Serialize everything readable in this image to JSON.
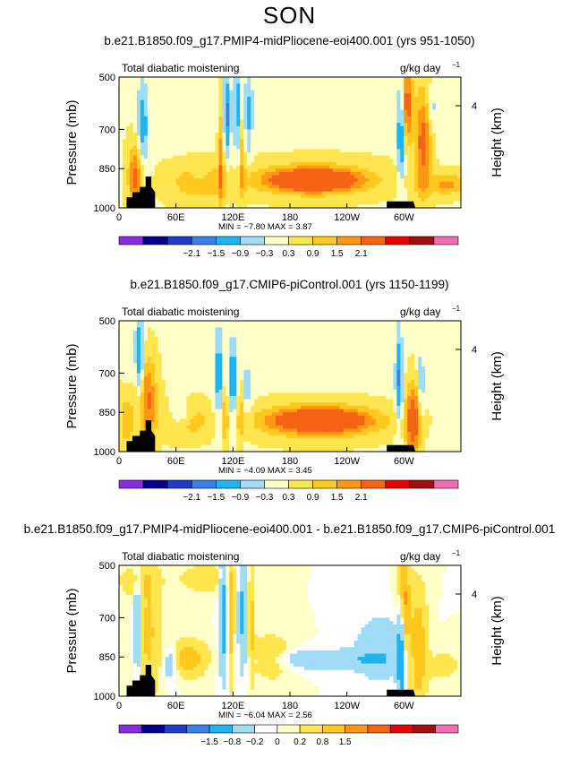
{
  "page": {
    "season": "SON"
  },
  "panels": [
    {
      "title": "b.e21.B1850.f09_g17.PMIP4-midPliocene-eoi400.001 (yrs 951-1050)",
      "field_label": "Total diabatic moistening",
      "units": "g/kg day",
      "units_exp": "−1",
      "ylabel": "Pressure (mb)",
      "ylabel_right": "Height (km)",
      "minmax": "MIN =   −7.80   MAX =   3.87",
      "colorbar_labels": [
        "−2.1",
        "−1.5",
        "−0.9",
        "−0.3",
        "0.3",
        "0.9",
        "1.5",
        "2.1"
      ]
    },
    {
      "title": "b.e21.B1850.f09_g17.CMIP6-piControl.001 (yrs 1150-1199)",
      "field_label": "Total diabatic moistening",
      "units": "g/kg day",
      "units_exp": "−1",
      "ylabel": "Pressure (mb)",
      "ylabel_right": "Height (km)",
      "minmax": "MIN =   −4.09   MAX =   3.45",
      "colorbar_labels": [
        "−2.1",
        "−1.5",
        "−0.9",
        "−0.3",
        "0.3",
        "0.9",
        "1.5",
        "2.1"
      ]
    },
    {
      "title": "b.e21.B1850.f09_g17.PMIP4-midPliocene-eoi400.001 - b.e21.B1850.f09_g17.CMIP6-piControl.001",
      "field_label": "Total diabatic moistening",
      "units": "g/kg day",
      "units_exp": "−1",
      "ylabel": "Pressure (mb)",
      "ylabel_right": "Height (km)",
      "minmax": "MIN =   −6.04   MAX =   2.56",
      "colorbar_labels": [
        "−1.5",
        "−0.8",
        "−0.2",
        "0",
        "0.2",
        "0.8",
        "1.5"
      ]
    }
  ],
  "chart_data": [
    {
      "type": "heatmap",
      "title": "b.e21.B1850.f09_g17.PMIP4-midPliocene-eoi400.001 (yrs 951-1050)",
      "variable": "Total diabatic moistening",
      "units": "g/kg day-1",
      "x_ticks": [
        "0",
        "60E",
        "120E",
        "180",
        "120W",
        "60W"
      ],
      "x_tick_values": [
        0,
        60,
        120,
        180,
        240,
        300
      ],
      "xlim": [
        0,
        360
      ],
      "y_ticks": [
        500,
        700,
        850,
        1000
      ],
      "ylim": [
        1000,
        500
      ],
      "right_axis_ticks": [
        "4"
      ],
      "min": -7.8,
      "max": 3.87,
      "levels": [
        -2.1,
        -1.5,
        -0.9,
        -0.3,
        0.3,
        0.9,
        1.5,
        2.1
      ],
      "colors": [
        "#8a2be2",
        "#00008b",
        "#1e3cc8",
        "#3c82e6",
        "#1eb4f0",
        "#a0dcf5",
        "#ffffc8",
        "#ffe650",
        "#ffc81e",
        "#ff9614",
        "#f56414",
        "#e60000",
        "#a00f0f",
        "#f06eb4"
      ]
    },
    {
      "type": "heatmap",
      "title": "b.e21.B1850.f09_g17.CMIP6-piControl.001 (yrs 1150-1199)",
      "variable": "Total diabatic moistening",
      "units": "g/kg day-1",
      "x_ticks": [
        "0",
        "60E",
        "120E",
        "180",
        "120W",
        "60W"
      ],
      "x_tick_values": [
        0,
        60,
        120,
        180,
        240,
        300
      ],
      "xlim": [
        0,
        360
      ],
      "y_ticks": [
        500,
        700,
        850,
        1000
      ],
      "ylim": [
        1000,
        500
      ],
      "right_axis_ticks": [
        "4"
      ],
      "min": -4.09,
      "max": 3.45,
      "levels": [
        -2.1,
        -1.5,
        -0.9,
        -0.3,
        0.3,
        0.9,
        1.5,
        2.1
      ],
      "colors": [
        "#8a2be2",
        "#00008b",
        "#1e3cc8",
        "#3c82e6",
        "#1eb4f0",
        "#a0dcf5",
        "#ffffc8",
        "#ffe650",
        "#ffc81e",
        "#ff9614",
        "#f56414",
        "#e60000",
        "#a00f0f",
        "#f06eb4"
      ]
    },
    {
      "type": "heatmap",
      "title": "b.e21.B1850.f09_g17.PMIP4-midPliocene-eoi400.001 - b.e21.B1850.f09_g17.CMIP6-piControl.001",
      "variable": "Total diabatic moistening",
      "units": "g/kg day-1",
      "x_ticks": [
        "0",
        "60E",
        "120E",
        "180",
        "120W",
        "60W"
      ],
      "x_tick_values": [
        0,
        60,
        120,
        180,
        240,
        300
      ],
      "xlim": [
        0,
        360
      ],
      "y_ticks": [
        500,
        700,
        850,
        1000
      ],
      "ylim": [
        1000,
        500
      ],
      "right_axis_ticks": [
        "4"
      ],
      "min": -6.04,
      "max": 2.56,
      "levels": [
        -1.5,
        -0.8,
        -0.2,
        0,
        0.2,
        0.8,
        1.5
      ],
      "colors": [
        "#8a2be2",
        "#00008b",
        "#1e3cc8",
        "#3c82e6",
        "#1eb4f0",
        "#a0dcf5",
        "#ffffff",
        "#ffffc8",
        "#ffe650",
        "#ffc81e",
        "#ff9614",
        "#f56414",
        "#e60000",
        "#a00f0f",
        "#f06eb4"
      ]
    }
  ]
}
